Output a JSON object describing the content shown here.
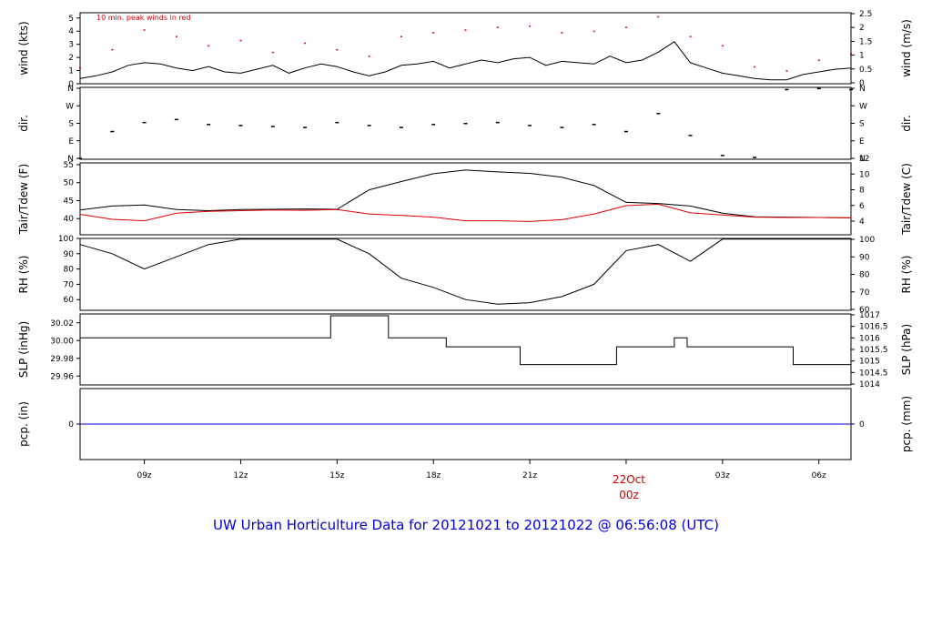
{
  "title": "UW Urban Horticulture Data for 20121021  to  20121022 @ 06:56:08  (UTC)",
  "peak_note": "10 min. peak winds in red",
  "date_marker": {
    "day": "22Oct",
    "hour": "00z"
  },
  "colors": {
    "primary": "#000000",
    "secondary": "#e00000",
    "precip": "#0000cc",
    "title": "#0000e0"
  },
  "chart_data": [
    {
      "type": "line",
      "id": "wind",
      "ylabel": "wind (kts)",
      "ylabel_right": "wind (m/s)",
      "ylim": [
        0,
        5.4
      ],
      "yticks": [
        "0",
        "1",
        "2",
        "3",
        "4",
        "5"
      ],
      "yticks_right": [
        "0",
        "0.5",
        "1",
        "1.5",
        "2",
        "2.5"
      ],
      "series": [
        {
          "name": "wind",
          "color": "#000000",
          "x": [
            0,
            0.5,
            1,
            1.5,
            2,
            2.5,
            3,
            3.5,
            4,
            4.5,
            5,
            5.5,
            6,
            6.5,
            7,
            7.5,
            8,
            8.5,
            9,
            9.5,
            10,
            10.5,
            11,
            11.5,
            12,
            12.5,
            13,
            13.5,
            14,
            14.5,
            15,
            15.5,
            16,
            16.5,
            17,
            17.5,
            18,
            18.5,
            19,
            19.5,
            20,
            20.5,
            21,
            21.5,
            22,
            22.5,
            23,
            23.5,
            24
          ],
          "y": [
            0.4,
            0.6,
            0.9,
            1.4,
            1.6,
            1.5,
            1.2,
            1.0,
            1.3,
            0.9,
            0.8,
            1.1,
            1.4,
            0.8,
            1.2,
            1.5,
            1.3,
            0.9,
            0.6,
            0.9,
            1.4,
            1.5,
            1.7,
            1.2,
            1.5,
            1.8,
            1.6,
            1.9,
            2.0,
            1.4,
            1.7,
            1.6,
            1.5,
            2.1,
            1.6,
            1.8,
            2.4,
            3.2,
            1.6,
            1.2,
            0.8,
            0.6,
            0.4,
            0.3,
            0.3,
            0.7,
            0.9,
            1.1,
            1.2
          ]
        },
        {
          "name": "10 min. peak winds",
          "color": "#e00000",
          "x": [
            0,
            1,
            2,
            3,
            4,
            5,
            6,
            7,
            8,
            9,
            10,
            11,
            12,
            13,
            14,
            15,
            16,
            17,
            18,
            19,
            20,
            21,
            22,
            23,
            24
          ],
          "y": [
            1.2,
            2.6,
            4.1,
            3.6,
            2.9,
            3.3,
            2.4,
            3.1,
            2.6,
            2.1,
            3.6,
            3.9,
            4.1,
            4.3,
            4.4,
            3.9,
            4.0,
            4.3,
            5.1,
            3.6,
            2.9,
            1.3,
            1.0,
            1.8,
            2.3
          ]
        }
      ]
    },
    {
      "type": "scatter",
      "id": "dir",
      "ylabel": "dir.",
      "ylabel_right": "dir.",
      "ylim": [
        0,
        360
      ],
      "yticks": [
        "N",
        "E",
        "S",
        "W",
        "N"
      ],
      "yticks_right": [
        "N",
        "E",
        "S",
        "W",
        "N"
      ],
      "series": [
        {
          "name": "direction (deg)",
          "color": "#000000",
          "x": [
            0,
            1,
            2,
            3,
            4,
            5,
            6,
            7,
            8,
            9,
            10,
            11,
            12,
            13,
            14,
            15,
            16,
            17,
            18,
            19,
            20,
            21,
            22,
            23,
            24
          ],
          "y": [
            5,
            140,
            185,
            200,
            175,
            170,
            165,
            160,
            185,
            170,
            160,
            175,
            180,
            185,
            170,
            160,
            175,
            140,
            230,
            120,
            20,
            10,
            350,
            355,
            350
          ]
        }
      ]
    },
    {
      "type": "line",
      "id": "temp",
      "ylabel": "Tair/Tdew (F)",
      "ylabel_right": "Tair/Tdew (C)",
      "ylim": [
        35.5,
        55.5
      ],
      "yticks": [
        "40",
        "45",
        "50",
        "55"
      ],
      "yticks_right": [
        "4",
        "6",
        "8",
        "10",
        "12"
      ],
      "series": [
        {
          "name": "Tair",
          "color": "#000000",
          "x": [
            0,
            1,
            2,
            3,
            4,
            5,
            6,
            7,
            8,
            9,
            10,
            11,
            12,
            13,
            14,
            15,
            16,
            17,
            18,
            19,
            20,
            21,
            22,
            23,
            24
          ],
          "y": [
            42.4,
            43.5,
            43.8,
            42.5,
            42.2,
            42.5,
            42.6,
            42.7,
            42.6,
            48.0,
            50.3,
            52.5,
            53.5,
            53.0,
            52.6,
            51.5,
            49.2,
            44.5,
            44.2,
            43.5,
            41.5,
            40.5,
            40.4,
            40.3,
            40.2
          ]
        },
        {
          "name": "Tdew",
          "color": "#e00000",
          "x": [
            0,
            1,
            2,
            3,
            4,
            5,
            6,
            7,
            8,
            9,
            10,
            11,
            12,
            13,
            14,
            15,
            16,
            17,
            18,
            19,
            20,
            21,
            22,
            23,
            24
          ],
          "y": [
            41.2,
            39.8,
            39.4,
            41.5,
            42.0,
            42.2,
            42.4,
            42.3,
            42.5,
            41.3,
            40.9,
            40.4,
            39.4,
            39.4,
            39.2,
            39.7,
            41.3,
            43.6,
            44.0,
            41.6,
            41.0,
            40.4,
            40.3,
            40.3,
            40.2
          ]
        }
      ]
    },
    {
      "type": "line",
      "id": "rh",
      "ylabel": "RH (%)",
      "ylabel_right": "RH (%)",
      "ylim": [
        53,
        100
      ],
      "yticks": [
        "60",
        "70",
        "80",
        "90",
        "100"
      ],
      "yticks_right": [
        "60",
        "70",
        "80",
        "90",
        "100"
      ],
      "series": [
        {
          "name": "RH",
          "color": "#000000",
          "x": [
            0,
            1,
            2,
            3,
            4,
            5,
            6,
            7,
            8,
            9,
            10,
            11,
            12,
            13,
            14,
            15,
            16,
            17,
            18,
            19,
            20,
            21,
            22,
            23,
            24
          ],
          "y": [
            96,
            90,
            80,
            88,
            96,
            99.5,
            99.5,
            99.5,
            99.5,
            90,
            74,
            68,
            60,
            57,
            58,
            62,
            70,
            92,
            96,
            85,
            99.5,
            99.5,
            99.5,
            99.5,
            99.5
          ]
        }
      ]
    },
    {
      "type": "line",
      "id": "slp",
      "ylabel": "SLP (inHg)",
      "ylabel_right": "SLP (hPa)",
      "ylim": [
        29.95,
        30.03
      ],
      "yticks": [
        "29.96",
        "29.98",
        "30.00",
        "30.02"
      ],
      "yticks_right": [
        "1014",
        "1014.5",
        "1015",
        "1015.5",
        "1016",
        "1016.5",
        "1017"
      ],
      "series": [
        {
          "name": "SLP",
          "color": "#000000",
          "step": true,
          "x": [
            0,
            7.8,
            7.8,
            9.6,
            9.6,
            11.4,
            11.4,
            13.7,
            13.7,
            16.7,
            16.7,
            18.5,
            18.5,
            18.9,
            18.9,
            22.2,
            22.2,
            24
          ],
          "y": [
            30.003,
            30.003,
            30.028,
            30.028,
            30.003,
            30.003,
            29.993,
            29.993,
            29.973,
            29.973,
            29.993,
            29.993,
            30.003,
            30.003,
            29.993,
            29.993,
            29.973,
            29.973
          ]
        }
      ]
    },
    {
      "type": "line",
      "id": "pcp",
      "ylabel": "pcp. (in)",
      "ylabel_right": "pcp. (mm)",
      "ylim": [
        -1,
        1
      ],
      "yticks": [
        "0"
      ],
      "yticks_right": [
        "0"
      ],
      "series": [
        {
          "name": "precip",
          "color": "#0000cc",
          "x": [
            0,
            24
          ],
          "y": [
            0,
            0
          ]
        }
      ]
    }
  ],
  "xaxis": {
    "range": [
      0,
      24
    ],
    "ticks": [
      {
        "x": 2.0,
        "label": "09z"
      },
      {
        "x": 5.0,
        "label": "12z"
      },
      {
        "x": 8.0,
        "label": "15z"
      },
      {
        "x": 11.0,
        "label": "18z"
      },
      {
        "x": 14.0,
        "label": "21z"
      },
      {
        "x": 17.0,
        "label": "00z"
      },
      {
        "x": 20.0,
        "label": "03z"
      },
      {
        "x": 23.0,
        "label": "06z"
      }
    ]
  }
}
